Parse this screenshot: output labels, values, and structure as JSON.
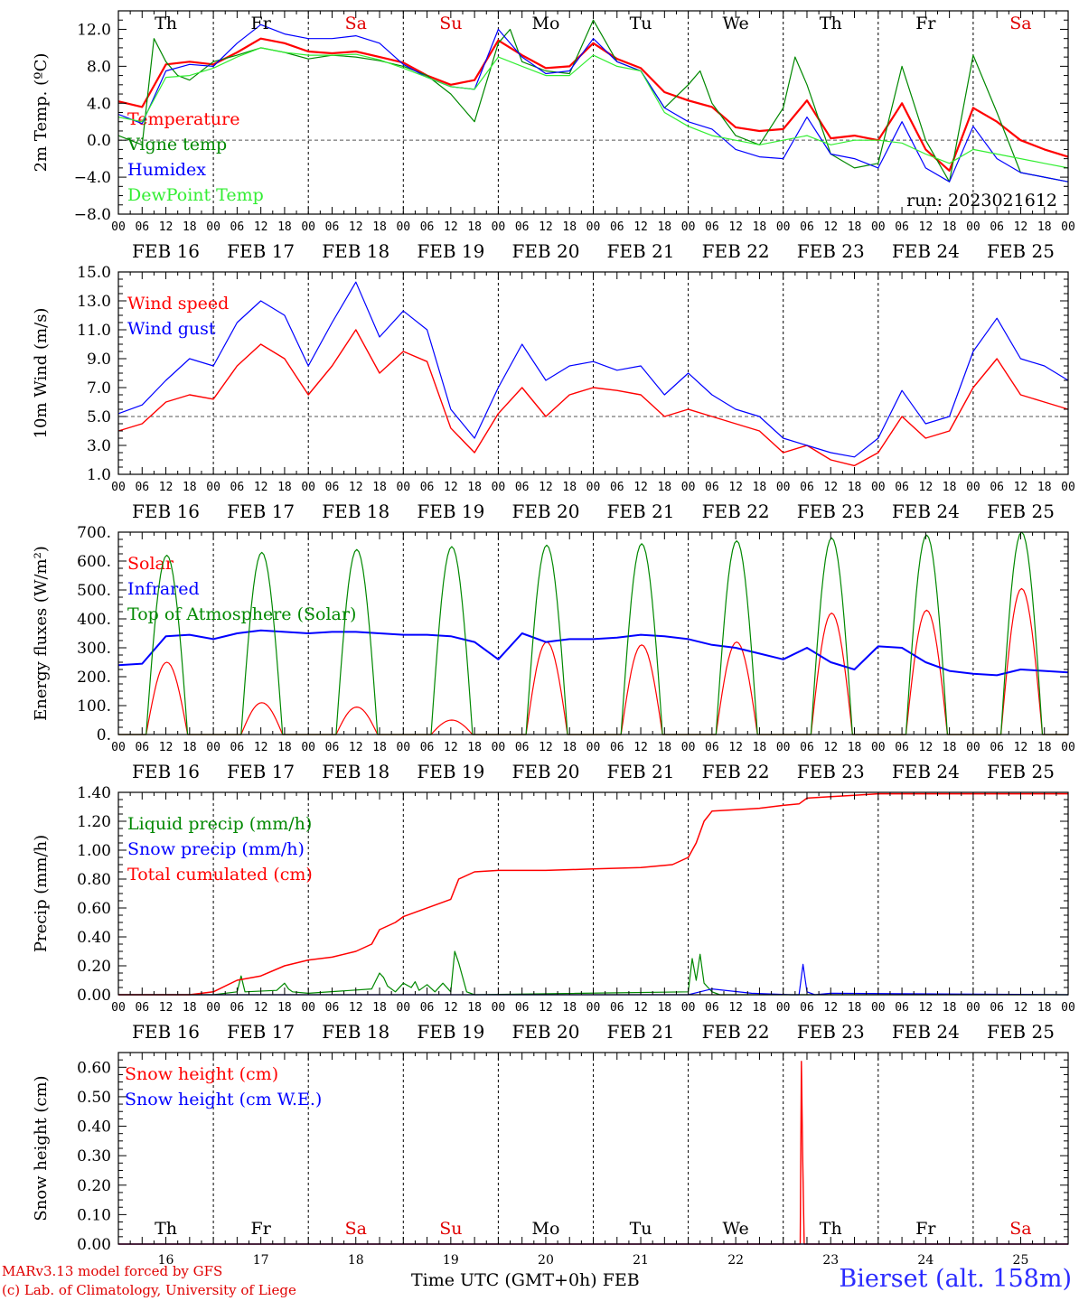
{
  "chart_data": [
    {
      "type": "line",
      "ylabel": "2m Temp. (ºC)",
      "ylim": [
        -8,
        14
      ],
      "yticks": [
        -8,
        -4,
        0,
        4,
        8,
        12
      ],
      "ytick_labels": [
        "−8.0",
        "−4.0",
        "0.0",
        "4.0",
        "8.0",
        "12.0"
      ],
      "reference_line": 0,
      "weekday_labels": [
        "Th",
        "Fr",
        "Sa",
        "Su",
        "Mo",
        "Tu",
        "We",
        "Th",
        "Fr",
        "Sa"
      ],
      "weekday_colors": [
        "#000000",
        "#000000",
        "#e00000",
        "#e00000",
        "#000000",
        "#000000",
        "#000000",
        "#000000",
        "#000000",
        "#e00000"
      ],
      "run_label": "run: 2023021612",
      "series": [
        {
          "name": "Temperature",
          "color": "#ff0000",
          "width": 2.2,
          "x": [
            0,
            6,
            12,
            18,
            24,
            30,
            36,
            42,
            48,
            54,
            60,
            66,
            72,
            78,
            84,
            90,
            96,
            102,
            108,
            114,
            120,
            126,
            132,
            138,
            144,
            150,
            156,
            162,
            168,
            174,
            180,
            186,
            192,
            198,
            204,
            210,
            216,
            222,
            228,
            234,
            240
          ],
          "y": [
            4.2,
            3.6,
            8.2,
            8.5,
            8.2,
            9.5,
            11.0,
            10.5,
            9.6,
            9.4,
            9.6,
            9.0,
            8.4,
            7.0,
            6.0,
            6.5,
            10.8,
            9.2,
            7.8,
            8.0,
            10.5,
            8.8,
            7.8,
            5.2,
            4.3,
            3.6,
            1.4,
            1.0,
            1.2,
            4.3,
            0.2,
            0.5,
            0.0,
            4.0,
            -1.0,
            -3.3,
            3.5,
            2.0,
            0.0,
            -1.0,
            -1.8
          ]
        },
        {
          "name": "Vigne temp",
          "color": "#008800",
          "width": 1.2,
          "x": [
            0,
            6,
            9,
            12,
            15,
            18,
            24,
            30,
            36,
            42,
            48,
            54,
            60,
            66,
            72,
            78,
            84,
            90,
            96,
            99,
            102,
            108,
            114,
            120,
            126,
            132,
            138,
            144,
            147,
            150,
            156,
            162,
            168,
            171,
            174,
            180,
            186,
            192,
            198,
            204,
            210,
            216,
            222,
            228,
            234,
            240
          ],
          "y": [
            0.5,
            -0.5,
            11.0,
            8.5,
            7.0,
            6.5,
            8.5,
            9.2,
            10.0,
            9.5,
            8.8,
            9.2,
            9.0,
            8.6,
            8.0,
            7.0,
            5.0,
            2.0,
            10.5,
            12.0,
            8.5,
            7.5,
            7.2,
            13.0,
            8.5,
            7.5,
            3.5,
            6.0,
            7.5,
            4.0,
            0.5,
            -0.5,
            3.5,
            9.0,
            6.0,
            -1.5,
            -3.0,
            -2.5,
            8.0,
            0.0,
            -4.5,
            9.2,
            3.0,
            -3.5,
            -4.0,
            -4.5
          ]
        },
        {
          "name": "Humidex",
          "color": "#0000ff",
          "width": 1.2,
          "x": [
            0,
            6,
            12,
            18,
            24,
            30,
            36,
            42,
            48,
            54,
            60,
            66,
            72,
            78,
            84,
            90,
            96,
            102,
            108,
            114,
            120,
            126,
            132,
            138,
            144,
            150,
            156,
            162,
            168,
            174,
            180,
            186,
            192,
            198,
            204,
            210,
            216,
            222,
            228,
            234,
            240
          ],
          "y": [
            2.8,
            1.8,
            7.5,
            8.2,
            8.0,
            10.5,
            12.5,
            11.5,
            11.0,
            11.0,
            11.3,
            10.5,
            8.2,
            6.8,
            5.8,
            5.5,
            12.0,
            9.0,
            7.2,
            7.5,
            11.0,
            8.5,
            7.5,
            3.5,
            2.0,
            1.2,
            -1.0,
            -1.8,
            -2.0,
            2.5,
            -1.5,
            -2.0,
            -3.0,
            2.0,
            -3.0,
            -4.5,
            1.5,
            -2.0,
            -3.5,
            -4.0,
            -4.5
          ]
        },
        {
          "name": "DewPoint Temp",
          "color": "#33ee33",
          "width": 1.2,
          "x": [
            0,
            6,
            12,
            18,
            24,
            30,
            36,
            42,
            48,
            54,
            60,
            66,
            72,
            78,
            84,
            90,
            96,
            102,
            108,
            114,
            120,
            126,
            132,
            138,
            144,
            150,
            156,
            162,
            168,
            174,
            180,
            186,
            192,
            198,
            204,
            210,
            216,
            222,
            228,
            234,
            240
          ],
          "y": [
            2.5,
            2.0,
            6.8,
            7.0,
            7.8,
            9.0,
            10.0,
            9.5,
            9.2,
            9.2,
            9.3,
            8.7,
            7.8,
            6.8,
            5.8,
            5.5,
            9.0,
            8.0,
            7.0,
            7.0,
            9.2,
            8.0,
            7.5,
            3.0,
            1.5,
            0.5,
            0.0,
            -0.5,
            0.0,
            0.5,
            -0.5,
            0.0,
            0.0,
            -0.3,
            -1.5,
            -2.5,
            -1.0,
            -1.5,
            -2.0,
            -2.5,
            -3.0
          ]
        }
      ]
    },
    {
      "type": "line",
      "ylabel": "10m Wind (m/s)",
      "ylim": [
        1,
        15
      ],
      "yticks": [
        1,
        3,
        5,
        7,
        9,
        11,
        13,
        15
      ],
      "ytick_labels": [
        "1.0",
        "3.0",
        "5.0",
        "7.0",
        "9.0",
        "11.0",
        "13.0",
        "15.0"
      ],
      "reference_line": 5,
      "series": [
        {
          "name": "Wind speed",
          "color": "#ff0000",
          "width": 1.4,
          "x": [
            0,
            6,
            12,
            18,
            24,
            30,
            36,
            42,
            48,
            54,
            60,
            66,
            72,
            78,
            84,
            90,
            96,
            102,
            108,
            114,
            120,
            126,
            132,
            138,
            144,
            150,
            156,
            162,
            168,
            174,
            180,
            186,
            192,
            198,
            204,
            210,
            216,
            222,
            228,
            234,
            240
          ],
          "y": [
            4.0,
            4.5,
            6.0,
            6.5,
            6.2,
            8.5,
            10.0,
            9.0,
            6.5,
            8.5,
            11.0,
            8.0,
            9.5,
            8.8,
            4.2,
            2.5,
            5.2,
            7.0,
            5.0,
            6.5,
            7.0,
            6.8,
            6.5,
            5.0,
            5.5,
            5.0,
            4.5,
            4.0,
            2.5,
            3.0,
            2.0,
            1.6,
            2.5,
            5.0,
            3.5,
            4.0,
            7.0,
            9.0,
            6.5,
            6.0,
            5.5
          ]
        },
        {
          "name": "Wind gust",
          "color": "#0000ff",
          "width": 1.2,
          "x": [
            0,
            6,
            12,
            18,
            24,
            30,
            36,
            42,
            48,
            54,
            60,
            66,
            72,
            78,
            84,
            90,
            96,
            102,
            108,
            114,
            120,
            126,
            132,
            138,
            144,
            150,
            156,
            162,
            168,
            174,
            180,
            186,
            192,
            198,
            204,
            210,
            216,
            222,
            228,
            234,
            240
          ],
          "y": [
            5.2,
            5.8,
            7.5,
            9.0,
            8.5,
            11.5,
            13.0,
            12.0,
            8.5,
            11.5,
            14.3,
            10.5,
            12.3,
            11.0,
            5.5,
            3.5,
            7.0,
            10.0,
            7.5,
            8.5,
            8.8,
            8.2,
            8.5,
            6.5,
            8.0,
            6.5,
            5.5,
            5.0,
            3.5,
            3.0,
            2.5,
            2.2,
            3.5,
            6.8,
            4.5,
            5.0,
            9.5,
            11.8,
            9.0,
            8.5,
            7.5
          ]
        }
      ]
    },
    {
      "type": "line",
      "ylabel": "Energy fluxes (W/m²)",
      "ylim": [
        0,
        700
      ],
      "yticks": [
        0,
        100,
        200,
        300,
        400,
        500,
        600,
        700
      ],
      "ytick_labels": [
        "0.",
        "100.",
        "200.",
        "300.",
        "400.",
        "500.",
        "600.",
        "700."
      ],
      "diurnal": {
        "toa_peaks": [
          620,
          630,
          640,
          650,
          655,
          660,
          670,
          680,
          690,
          700
        ],
        "solar_peaks": [
          250,
          110,
          95,
          50,
          320,
          310,
          320,
          420,
          430,
          505
        ],
        "sunrise_hour": 7,
        "sunset_hour": 17.5
      },
      "series": [
        {
          "name": "Solar",
          "color": "#ff0000",
          "width": 1.2
        },
        {
          "name": "Infrared",
          "color": "#0000ff",
          "width": 2.0,
          "x": [
            0,
            6,
            12,
            18,
            24,
            30,
            36,
            42,
            48,
            54,
            60,
            66,
            72,
            78,
            84,
            90,
            96,
            102,
            108,
            114,
            120,
            126,
            132,
            138,
            144,
            150,
            156,
            162,
            168,
            174,
            180,
            186,
            192,
            198,
            204,
            210,
            216,
            222,
            228,
            234,
            240
          ],
          "y": [
            240,
            245,
            340,
            345,
            330,
            350,
            360,
            355,
            350,
            355,
            355,
            350,
            345,
            345,
            340,
            320,
            260,
            350,
            320,
            330,
            330,
            335,
            345,
            340,
            330,
            310,
            300,
            280,
            260,
            300,
            250,
            225,
            305,
            300,
            250,
            220,
            210,
            205,
            225,
            220,
            215
          ]
        },
        {
          "name": "Top of Atmosphere (Solar)",
          "color": "#008800",
          "width": 1.2
        }
      ]
    },
    {
      "type": "line",
      "ylabel": "Precip (mm/h)",
      "ylim": [
        0,
        1.4
      ],
      "yticks": [
        0,
        0.2,
        0.4,
        0.6,
        0.8,
        1.0,
        1.2,
        1.4
      ],
      "ytick_labels": [
        "0.00",
        "0.20",
        "0.40",
        "0.60",
        "0.80",
        "1.00",
        "1.20",
        "1.40"
      ],
      "series": [
        {
          "name": "Liquid precip (mm/h)",
          "color": "#008800",
          "width": 1.2,
          "x": [
            0,
            24,
            30,
            31,
            32,
            40,
            42,
            43,
            44,
            48,
            64,
            66,
            67,
            68,
            70,
            72,
            74,
            75,
            76,
            78,
            80,
            82,
            84,
            85,
            86,
            88,
            90,
            144,
            145,
            146,
            147,
            148,
            149,
            150,
            152,
            168,
            240
          ],
          "y": [
            0,
            0,
            0.02,
            0.13,
            0.02,
            0.03,
            0.08,
            0.04,
            0.02,
            0.01,
            0.04,
            0.15,
            0.12,
            0.06,
            0.02,
            0.08,
            0.05,
            0.09,
            0.03,
            0.07,
            0.02,
            0.08,
            0.02,
            0.3,
            0.22,
            0.02,
            0.0,
            0.02,
            0.25,
            0.1,
            0.28,
            0.08,
            0.05,
            0.02,
            0.0,
            0.0,
            0.0
          ]
        },
        {
          "name": "Snow precip (mm/h)",
          "color": "#0000ff",
          "width": 1.2,
          "x": [
            0,
            144,
            150,
            160,
            170,
            172,
            173,
            174,
            176,
            180,
            240
          ],
          "y": [
            0,
            0,
            0.04,
            0.01,
            0.0,
            0.0,
            0.21,
            0.02,
            0.0,
            0.01,
            0.0
          ]
        },
        {
          "name": "Total cumulated (cm)",
          "color": "#ff0000",
          "width": 1.5,
          "x": [
            0,
            18,
            24,
            30,
            36,
            42,
            48,
            54,
            60,
            64,
            66,
            70,
            72,
            76,
            80,
            84,
            86,
            90,
            96,
            108,
            120,
            132,
            140,
            144,
            146,
            148,
            150,
            156,
            162,
            168,
            172,
            174,
            180,
            186,
            192,
            204,
            216,
            228,
            240
          ],
          "y": [
            0,
            0.0,
            0.02,
            0.1,
            0.13,
            0.2,
            0.24,
            0.26,
            0.3,
            0.35,
            0.45,
            0.5,
            0.54,
            0.58,
            0.62,
            0.66,
            0.8,
            0.85,
            0.86,
            0.86,
            0.87,
            0.88,
            0.9,
            0.95,
            1.05,
            1.2,
            1.27,
            1.28,
            1.29,
            1.31,
            1.32,
            1.36,
            1.37,
            1.38,
            1.39,
            1.39,
            1.39,
            1.39,
            1.39
          ]
        }
      ]
    },
    {
      "type": "line",
      "ylabel": "Snow height (cm)",
      "ylim": [
        0,
        0.65
      ],
      "yticks": [
        0,
        0.1,
        0.2,
        0.3,
        0.4,
        0.5,
        0.6
      ],
      "ytick_labels": [
        "0.00",
        "0.10",
        "0.20",
        "0.30",
        "0.40",
        "0.50",
        "0.60"
      ],
      "day_numbers": [
        "16",
        "17",
        "18",
        "19",
        "20",
        "21",
        "22",
        "23",
        "24",
        "25"
      ],
      "series": [
        {
          "name": "Snow height (cm)",
          "color": "#ff0000",
          "width": 1.4,
          "x": [
            0,
            172.3,
            172.6,
            172.9,
            173.3,
            240
          ],
          "y": [
            0,
            0,
            0.62,
            0.3,
            0,
            0
          ]
        },
        {
          "name": "Snow height (cm W.E.)",
          "color": "#0000ff",
          "width": 1.2,
          "x": [
            0,
            240
          ],
          "y": [
            0,
            0
          ]
        }
      ]
    }
  ],
  "time_axis": {
    "hour_labels": [
      "00",
      "06",
      "12",
      "18"
    ],
    "final_hour_label": "00",
    "date_labels": [
      "FEB 16",
      "FEB 17",
      "FEB 18",
      "FEB 19",
      "FEB 20",
      "FEB 21",
      "FEB 22",
      "FEB 23",
      "FEB 24",
      "FEB 25"
    ]
  },
  "footer": {
    "credit_line1": "MARv3.13 model forced by GFS",
    "credit_line2": "(c) Lab. of Climatology, University of Liege",
    "xlabel": "Time UTC (GMT+0h)",
    "xlabel_month": "FEB",
    "station": "Bierset (alt. 158m)"
  }
}
